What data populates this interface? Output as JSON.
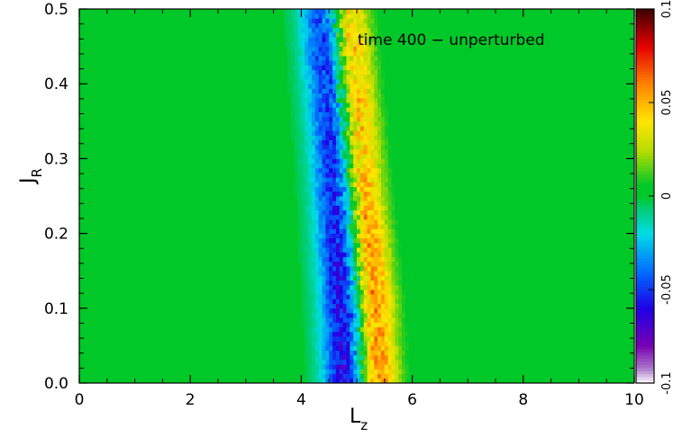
{
  "chart_data": {
    "type": "heatmap",
    "annotation": "time   400 − unperturbed",
    "xlabel": {
      "main": "L",
      "sub": "z"
    },
    "ylabel": {
      "main": "J",
      "sub": "R"
    },
    "xlim": [
      0,
      10
    ],
    "ylim": [
      0,
      0.5
    ],
    "x_ticks": [
      "0",
      "2",
      "4",
      "6",
      "8",
      "10"
    ],
    "x_tick_values": [
      0,
      2,
      4,
      6,
      8,
      10
    ],
    "y_ticks": [
      "0.0",
      "0.1",
      "0.2",
      "0.3",
      "0.4",
      "0.5"
    ],
    "y_tick_values": [
      0,
      0.1,
      0.2,
      0.3,
      0.4,
      0.5
    ],
    "colorbar": {
      "range": [
        -0.1,
        0.1
      ],
      "ticks": [
        "-0.1",
        "-0.05",
        "0",
        "0.05",
        "0.1"
      ],
      "tick_values": [
        -0.1,
        -0.05,
        0,
        0.05,
        0.1
      ]
    },
    "background_value": 0,
    "features": [
      {
        "name": "negative ridge",
        "peak_value": -0.07,
        "center_Lz": [
          [
            0.0,
            4.85
          ],
          [
            0.1,
            4.8
          ],
          [
            0.2,
            4.72
          ],
          [
            0.3,
            4.65
          ],
          [
            0.4,
            4.55
          ],
          [
            0.5,
            4.45
          ]
        ],
        "width_Lz": 0.3
      },
      {
        "name": "positive ridge",
        "peak_value": 0.07,
        "center_Lz": [
          [
            0.0,
            5.35
          ],
          [
            0.1,
            5.28
          ],
          [
            0.2,
            5.15
          ],
          [
            0.3,
            5.02
          ],
          [
            0.4,
            4.9
          ],
          [
            0.5,
            4.78
          ]
        ],
        "width_Lz": 0.28
      }
    ]
  }
}
